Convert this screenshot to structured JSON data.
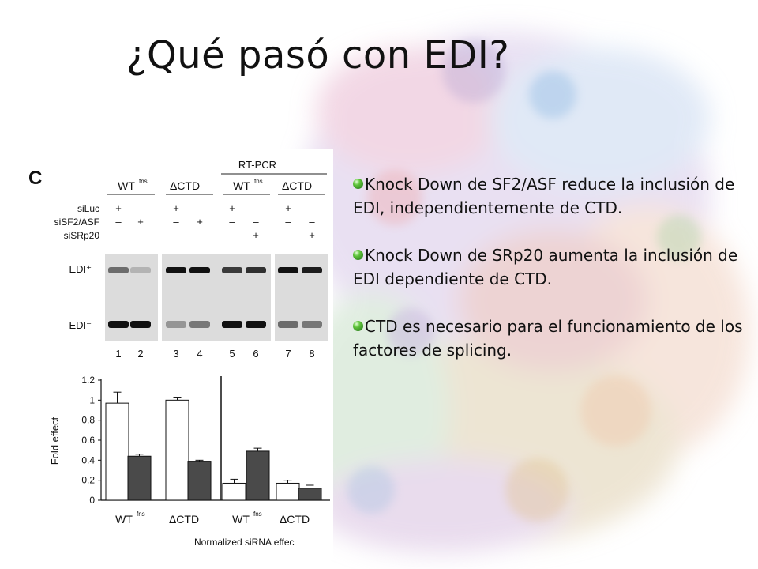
{
  "title": "¿Qué pasó con EDI?",
  "figure": {
    "panel_label": "C",
    "rtpcr_label": "RT-PCR",
    "group_labels": [
      "WT",
      "ΔCTD",
      "WT",
      "ΔCTD"
    ],
    "group_superscript": "fns",
    "row_labels": [
      "siLuc",
      "siSF2/ASF",
      "siSRp20"
    ],
    "row_values": [
      [
        "+",
        "–",
        "+",
        "–",
        "+",
        "–",
        "+",
        "–"
      ],
      [
        "–",
        "+",
        "–",
        "+",
        "–",
        "–",
        "–",
        "–"
      ],
      [
        "–",
        "–",
        "–",
        "–",
        "–",
        "+",
        "–",
        "+"
      ]
    ],
    "band_labels": [
      "EDI⁺",
      "EDI⁻"
    ],
    "lanes": [
      "1",
      "2",
      "3",
      "4",
      "5",
      "6",
      "7",
      "8"
    ],
    "chart_data": {
      "type": "bar",
      "ylabel": "Fold effect",
      "xlabel": "Normalized siRNA effec",
      "ylim": [
        0,
        1.2
      ],
      "yticks": [
        "0",
        "0.2",
        "0.4",
        "0.6",
        "0.8",
        "1",
        "1.2"
      ],
      "categories": [
        "WT",
        "ΔCTD",
        "WT",
        "ΔCTD"
      ],
      "category_superscripts": [
        "fns",
        "",
        "fns",
        ""
      ],
      "series": [
        {
          "color": "#ffffff",
          "values": [
            0.97,
            1.0,
            0.17,
            0.17
          ],
          "errors": [
            0.11,
            0.03,
            0.04,
            0.03
          ]
        },
        {
          "color": "#4a4a4a",
          "values": [
            0.44,
            0.39,
            0.49,
            0.12
          ],
          "errors": [
            0.02,
            0.01,
            0.03,
            0.03
          ]
        }
      ]
    }
  },
  "bullets": [
    "Knock Down de SF2/ASF reduce la inclusión de EDI, independientemente de CTD.",
    "Knock Down de SRp20 aumenta la inclusión de EDI dependiente de CTD.",
    "CTD es necesario para el funcionamiento de los factores de splicing."
  ]
}
